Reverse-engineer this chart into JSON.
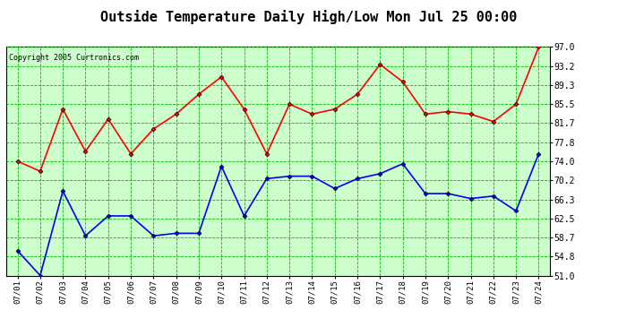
{
  "title": "Outside Temperature Daily High/Low Mon Jul 25 00:00",
  "copyright": "Copyright 2005 Curtronics.com",
  "x_labels": [
    "07/01",
    "07/02",
    "07/03",
    "07/04",
    "07/05",
    "07/06",
    "07/07",
    "07/08",
    "07/09",
    "07/10",
    "07/11",
    "07/12",
    "07/13",
    "07/14",
    "07/15",
    "07/16",
    "07/17",
    "07/18",
    "07/19",
    "07/20",
    "07/21",
    "07/22",
    "07/23",
    "07/24"
  ],
  "high_values": [
    74.0,
    72.0,
    84.5,
    76.0,
    82.5,
    75.5,
    80.5,
    83.5,
    87.5,
    91.0,
    84.5,
    75.5,
    85.5,
    83.5,
    84.5,
    87.5,
    93.5,
    90.0,
    83.5,
    84.0,
    83.5,
    82.0,
    85.5,
    97.0
  ],
  "low_values": [
    56.0,
    51.0,
    68.0,
    59.0,
    63.0,
    63.0,
    59.0,
    59.5,
    59.5,
    73.0,
    63.0,
    70.5,
    71.0,
    71.0,
    68.5,
    70.5,
    71.5,
    73.5,
    67.5,
    67.5,
    66.5,
    67.0,
    64.0,
    75.5
  ],
  "high_color": "#ff0000",
  "low_color": "#0000ff",
  "bg_color": "#ccffcc",
  "grid_color": "#00bb00",
  "title_color": "#000000",
  "y_ticks": [
    51.0,
    54.8,
    58.7,
    62.5,
    66.3,
    70.2,
    74.0,
    77.8,
    81.7,
    85.5,
    89.3,
    93.2,
    97.0
  ],
  "y_min": 51.0,
  "y_max": 97.0,
  "title_fontsize": 11,
  "marker": "D",
  "marker_size": 2.5,
  "marker_color": "#000000",
  "line_width": 1.2
}
